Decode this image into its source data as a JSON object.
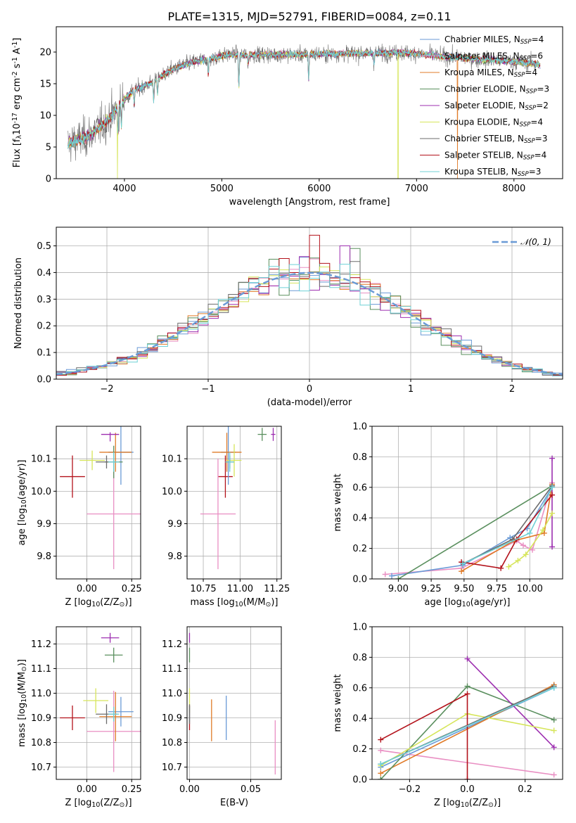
{
  "figure_title": "PLATE=1315, MJD=52791, FIBERID=0084, z=0.11",
  "series": [
    {
      "key": "cm",
      "name": "Chabrier MILES, N$_{SSP}$=4",
      "label": "Chabrier MILES, N",
      "nssp": "4",
      "color": "#6a9ad6"
    },
    {
      "key": "sm",
      "name": "Salpeter MILES, N$_{SSP}$=6",
      "label": "Salpeter MILES, N",
      "nssp": "6",
      "color": "#e98fc3"
    },
    {
      "key": "km",
      "name": "Kroupa MILES, N$_{SSP}$=4",
      "label": "Kroupa MILES, N",
      "nssp": "4",
      "color": "#e07b28"
    },
    {
      "key": "ce",
      "name": "Chabrier ELODIE, N$_{SSP}$=3",
      "label": "Chabrier ELODIE, N",
      "nssp": "3",
      "color": "#5a8f5e"
    },
    {
      "key": "se",
      "name": "Salpeter ELODIE, N$_{SSP}$=2",
      "label": "Salpeter ELODIE, N",
      "nssp": "2",
      "color": "#9d2fb0"
    },
    {
      "key": "ke",
      "name": "Kroupa ELODIE, N$_{SSP}$=4",
      "label": "Kroupa ELODIE, N",
      "nssp": "4",
      "color": "#d6e55a"
    },
    {
      "key": "cs",
      "name": "Chabrier STELIB, N$_{SSP}$=3",
      "label": "Chabrier STELIB, N",
      "nssp": "3",
      "color": "#6b6b6b"
    },
    {
      "key": "ss",
      "name": "Salpeter STELIB, N$_{SSP}$=4",
      "label": "Salpeter STELIB, N",
      "nssp": "4",
      "color": "#b3121b"
    },
    {
      "key": "ks",
      "name": "Kroupa STELIB, N$_{SSP}$=3",
      "label": "Kroupa STELIB, N",
      "nssp": "3",
      "color": "#6fd1d6"
    }
  ],
  "legend_subscript": "SSP",
  "chart_data": [
    {
      "id": "spectrum",
      "type": "line",
      "xlabel": "wavelength [Angstrom, rest frame]",
      "ylabel": "Flux [f$_\\lambda$10$^{-17}$ erg cm$^{-2}$ s$^{-1}$ A$^{-1}$]",
      "xlim": [
        3300,
        8500
      ],
      "ylim": [
        0,
        24
      ],
      "xticks": [
        4000,
        5000,
        6000,
        7000,
        8000
      ],
      "yticks": [
        0,
        5,
        10,
        15,
        20
      ],
      "legend": "top-right",
      "grid": false,
      "continuum": {
        "x": [
          3420,
          3500,
          3600,
          3700,
          3800,
          3900,
          4000,
          4100,
          4200,
          4300,
          4400,
          4500,
          4600,
          4700,
          4800,
          4900,
          5000,
          5100,
          5200,
          5400,
          5600,
          5800,
          6000,
          6200,
          6400,
          6600,
          6800,
          7000,
          7200,
          7400,
          7600,
          7800,
          8000,
          8200,
          8270
        ],
        "y": [
          5.5,
          6.0,
          6.5,
          7.6,
          8.8,
          10.6,
          12.6,
          14.0,
          14.6,
          15.3,
          16.4,
          17.3,
          17.9,
          18.4,
          18.7,
          19.0,
          19.4,
          19.6,
          19.5,
          19.6,
          19.6,
          19.6,
          19.7,
          19.7,
          19.8,
          19.8,
          19.9,
          19.8,
          19.4,
          19.2,
          18.9,
          18.7,
          18.5,
          18.2,
          18.0
        ]
      },
      "absorption_lines": [
        {
          "x": 3934,
          "depth": 4.5
        },
        {
          "x": 3969,
          "depth": 4.0
        },
        {
          "x": 4101,
          "depth": 2.5
        },
        {
          "x": 4300,
          "depth": 3.0
        },
        {
          "x": 4340,
          "depth": 2.5
        },
        {
          "x": 4861,
          "depth": 2.5
        },
        {
          "x": 5175,
          "depth": 5.0
        },
        {
          "x": 5270,
          "depth": 1.5
        },
        {
          "x": 5892,
          "depth": 4.0
        },
        {
          "x": 6563,
          "depth": 1.5
        }
      ],
      "spikes_to_zero": [
        {
          "x": 3927,
          "series": "ke"
        },
        {
          "x": 6810,
          "series": "ke"
        },
        {
          "x": 7420,
          "series": "km"
        }
      ]
    },
    {
      "id": "residuals",
      "type": "histogram",
      "xlabel": "(data-model)/error",
      "ylabel": "Normed distribution",
      "xlim": [
        -2.5,
        2.5
      ],
      "ylim": [
        0,
        0.57
      ],
      "xticks": [
        -2,
        -1,
        0,
        1,
        2
      ],
      "yticks": [
        0.0,
        0.1,
        0.2,
        0.3,
        0.4,
        0.5
      ],
      "grid": true,
      "legend": "top-right",
      "reference": {
        "name": "$\\mathcal{N}(0,1)$",
        "label": "𝒩(0, 1)",
        "color": "#6a9ad6",
        "style": "dashed"
      },
      "bins": {
        "start": -2.5,
        "width": 0.1,
        "count": 50
      },
      "peak_values": [
        {
          "series": "ss",
          "x": 0.05,
          "y": 0.54
        },
        {
          "series": "se",
          "x": 0.35,
          "y": 0.5
        },
        {
          "series": "ce",
          "x": 0.45,
          "y": 0.49
        }
      ]
    },
    {
      "id": "age_vs_Z",
      "type": "scatter",
      "errorbars": true,
      "xlabel": "Z [log$_{10}$(Z/Z$_\\odot$)]",
      "ylabel": "age  [log$_{10}$(age/yr)]",
      "xlim": [
        -0.17,
        0.3
      ],
      "ylim": [
        9.73,
        10.2
      ],
      "xticks": [
        0.0,
        0.25
      ],
      "yticks": [
        9.8,
        9.9,
        10.0,
        10.1
      ],
      "grid": true,
      "points": [
        {
          "series": "ss",
          "x": -0.08,
          "y": 10.045,
          "xerr": 0.07,
          "yerr": 0.065
        },
        {
          "series": "sm",
          "x": 0.15,
          "y": 9.93,
          "xerr": 0.15,
          "yerr": 0.17
        },
        {
          "series": "cm",
          "x": 0.19,
          "y": 10.12,
          "xerr": 0.07,
          "yerr": 0.1
        },
        {
          "series": "km",
          "x": 0.16,
          "y": 10.12,
          "xerr": 0.09,
          "yerr": 0.06
        },
        {
          "series": "ce",
          "x": 0.15,
          "y": 10.09,
          "xerr": 0.05,
          "yerr": 0.05
        },
        {
          "series": "se",
          "x": 0.13,
          "y": 10.175,
          "xerr": 0.05,
          "yerr": 0.0
        },
        {
          "series": "ke",
          "x": 0.03,
          "y": 10.095,
          "xerr": 0.07,
          "yerr": 0.03
        },
        {
          "series": "cs",
          "x": 0.11,
          "y": 10.09,
          "xerr": 0.06,
          "yerr": 0.02
        },
        {
          "series": "ks",
          "x": 0.15,
          "y": 10.09,
          "xerr": 0.03,
          "yerr": 0.03
        }
      ]
    },
    {
      "id": "age_vs_mass",
      "type": "scatter",
      "errorbars": true,
      "xlabel": "mass [log$_{10}$(M/M$_\\odot$)]",
      "ylabel": "",
      "xlim": [
        10.64,
        11.28
      ],
      "ylim": [
        9.73,
        10.2
      ],
      "xticks": [
        10.75,
        11.0,
        11.25
      ],
      "yticks": [
        9.8,
        9.9,
        10.0,
        10.1
      ],
      "grid": true,
      "points": [
        {
          "series": "ss",
          "x": 10.9,
          "y": 10.045,
          "xerr": 0.05,
          "yerr": 0.065
        },
        {
          "series": "sm",
          "x": 10.85,
          "y": 9.93,
          "xerr": 0.12,
          "yerr": 0.17
        },
        {
          "series": "cm",
          "x": 10.92,
          "y": 10.12,
          "xerr": 0.05,
          "yerr": 0.1
        },
        {
          "series": "km",
          "x": 10.91,
          "y": 10.12,
          "xerr": 0.1,
          "yerr": 0.06
        },
        {
          "series": "ce",
          "x": 11.15,
          "y": 10.175,
          "xerr": 0.03,
          "yerr": 0.02
        },
        {
          "series": "se",
          "x": 11.225,
          "y": 10.175,
          "xerr": 0.015,
          "yerr": 0.02
        },
        {
          "series": "ke",
          "x": 10.96,
          "y": 10.095,
          "xerr": 0.05,
          "yerr": 0.05
        },
        {
          "series": "cs",
          "x": 10.93,
          "y": 10.09,
          "xerr": 0.03,
          "yerr": 0.02
        },
        {
          "series": "ks",
          "x": 10.93,
          "y": 10.09,
          "xerr": 0.03,
          "yerr": 0.03
        }
      ]
    },
    {
      "id": "weight_vs_age",
      "type": "line",
      "markers": true,
      "xlabel": "age  [log$_{10}$(age/yr)]",
      "ylabel": "mass weight",
      "xlim": [
        8.8,
        10.25
      ],
      "ylim": [
        0,
        1
      ],
      "xticks": [
        9.0,
        9.25,
        9.5,
        9.75,
        10.0
      ],
      "yticks": [
        0.0,
        0.2,
        0.4,
        0.6,
        0.8,
        1.0
      ],
      "grid": true,
      "lines": [
        {
          "series": "sm",
          "x": [
            8.9,
            9.48,
            9.9,
            9.95,
            10.02,
            10.17
          ],
          "y": [
            0.03,
            0.07,
            0.25,
            0.22,
            0.19,
            0.63
          ]
        },
        {
          "series": "cm",
          "x": [
            8.95,
            9.49,
            9.85,
            9.98,
            10.17
          ],
          "y": [
            0.02,
            0.09,
            0.27,
            0.33,
            0.6
          ]
        },
        {
          "series": "km",
          "x": [
            9.48,
            9.88,
            10.11,
            10.17
          ],
          "y": [
            0.05,
            0.25,
            0.3,
            0.62
          ]
        },
        {
          "series": "ce",
          "x": [
            9.0,
            10.17
          ],
          "y": [
            0.0,
            0.61
          ]
        },
        {
          "series": "se",
          "x": [
            10.17,
            10.17
          ],
          "y": [
            0.21,
            0.79
          ]
        },
        {
          "series": "ke",
          "x": [
            9.84,
            9.91,
            9.97,
            10.1,
            10.17
          ],
          "y": [
            0.08,
            0.12,
            0.16,
            0.32,
            0.43
          ]
        },
        {
          "series": "cs",
          "x": [
            9.49,
            9.87,
            10.17
          ],
          "y": [
            0.1,
            0.26,
            0.61
          ]
        },
        {
          "series": "ss",
          "x": [
            9.48,
            9.78,
            9.9,
            10.17
          ],
          "y": [
            0.11,
            0.07,
            0.26,
            0.55
          ]
        },
        {
          "series": "ks",
          "x": [
            9.49,
            10.0,
            10.17
          ],
          "y": [
            0.1,
            0.3,
            0.6
          ]
        }
      ]
    },
    {
      "id": "mass_vs_Z",
      "type": "scatter",
      "errorbars": true,
      "xlabel": "Z [log$_{10}$(Z/Z$_\\odot$)]",
      "ylabel": "mass [log$_{10}$(M/M$_\\odot$)]",
      "xlim": [
        -0.17,
        0.3
      ],
      "ylim": [
        10.65,
        11.27
      ],
      "xticks": [
        0.0,
        0.25
      ],
      "yticks": [
        10.7,
        10.8,
        10.9,
        11.0,
        11.1,
        11.2
      ],
      "grid": true,
      "points": [
        {
          "series": "ss",
          "x": -0.08,
          "y": 10.9,
          "xerr": 0.07,
          "yerr": 0.05
        },
        {
          "series": "sm",
          "x": 0.15,
          "y": 10.845,
          "xerr": 0.15,
          "yerr": 0.165
        },
        {
          "series": "cm",
          "x": 0.19,
          "y": 10.925,
          "xerr": 0.07,
          "yerr": 0.06
        },
        {
          "series": "km",
          "x": 0.16,
          "y": 10.905,
          "xerr": 0.09,
          "yerr": 0.1
        },
        {
          "series": "ce",
          "x": 0.15,
          "y": 11.155,
          "xerr": 0.05,
          "yerr": 0.03
        },
        {
          "series": "se",
          "x": 0.13,
          "y": 11.225,
          "xerr": 0.05,
          "yerr": 0.02
        },
        {
          "series": "ke",
          "x": 0.05,
          "y": 10.97,
          "xerr": 0.07,
          "yerr": 0.05
        },
        {
          "series": "cs",
          "x": 0.11,
          "y": 10.915,
          "xerr": 0.06,
          "yerr": 0.04
        },
        {
          "series": "ks",
          "x": 0.15,
          "y": 10.915,
          "xerr": 0.03,
          "yerr": 0.03
        }
      ]
    },
    {
      "id": "mass_vs_ebv",
      "type": "scatter",
      "errorbars": true,
      "xlabel": "E(B-V)",
      "ylabel": "",
      "xlim": [
        -0.002,
        0.075
      ],
      "ylim": [
        10.65,
        11.27
      ],
      "xticks": [
        0.0,
        0.05
      ],
      "yticks": [
        10.7,
        10.8,
        10.9,
        11.0,
        11.1,
        11.2
      ],
      "grid": true,
      "points": [
        {
          "series": "se",
          "x": 0.0,
          "y": 11.225,
          "xerr": 0,
          "yerr": 0.02
        },
        {
          "series": "ce",
          "x": 0.0,
          "y": 11.155,
          "xerr": 0,
          "yerr": 0.03
        },
        {
          "series": "ke",
          "x": 0.0,
          "y": 10.97,
          "xerr": 0,
          "yerr": 0.05
        },
        {
          "series": "ss",
          "x": 0.0,
          "y": 10.9,
          "xerr": 0,
          "yerr": 0.05
        },
        {
          "series": "ks",
          "x": 0.0,
          "y": 10.915,
          "xerr": 0,
          "yerr": 0.03
        },
        {
          "series": "cs",
          "x": 0.0,
          "y": 10.915,
          "xerr": 0,
          "yerr": 0.04
        },
        {
          "series": "km",
          "x": 0.018,
          "y": 10.89,
          "xerr": 0,
          "yerr": 0.085
        },
        {
          "series": "cm",
          "x": 0.03,
          "y": 10.9,
          "xerr": 0,
          "yerr": 0.09
        },
        {
          "series": "sm",
          "x": 0.07,
          "y": 10.78,
          "xerr": 0,
          "yerr": 0.11
        }
      ]
    },
    {
      "id": "weight_vs_Z",
      "type": "line",
      "markers": true,
      "xlabel": "Z [log$_{10}$(Z/Z$_\\odot$)]",
      "ylabel": "mass weight",
      "xlim": [
        -0.33,
        0.33
      ],
      "ylim": [
        0,
        1
      ],
      "xticks": [
        -0.2,
        0.0,
        0.2
      ],
      "yticks": [
        0.0,
        0.2,
        0.4,
        0.6,
        0.8,
        1.0
      ],
      "grid": true,
      "lines": [
        {
          "series": "sm",
          "x": [
            -0.3,
            0.3
          ],
          "y": [
            0.19,
            0.03
          ]
        },
        {
          "series": "cm",
          "x": [
            -0.3,
            0.3
          ],
          "y": [
            0.08,
            0.6
          ]
        },
        {
          "series": "km",
          "x": [
            -0.3,
            0.3
          ],
          "y": [
            0.04,
            0.62
          ]
        },
        {
          "series": "ce",
          "x": [
            -0.3,
            0.0,
            0.3
          ],
          "y": [
            0.0,
            0.61,
            0.39
          ]
        },
        {
          "series": "se",
          "x": [
            0.0,
            0.3
          ],
          "y": [
            0.79,
            0.21
          ]
        },
        {
          "series": "ke",
          "x": [
            -0.3,
            0.0,
            0.3
          ],
          "y": [
            0.09,
            0.43,
            0.32
          ]
        },
        {
          "series": "cs",
          "x": [
            -0.3,
            0.3
          ],
          "y": [
            0.1,
            0.61
          ]
        },
        {
          "series": "ss",
          "x": [
            -0.3,
            0.0,
            0.0
          ],
          "y": [
            0.26,
            0.56,
            0.0
          ]
        },
        {
          "series": "ks",
          "x": [
            -0.3,
            0.3
          ],
          "y": [
            0.1,
            0.6
          ]
        }
      ]
    }
  ]
}
